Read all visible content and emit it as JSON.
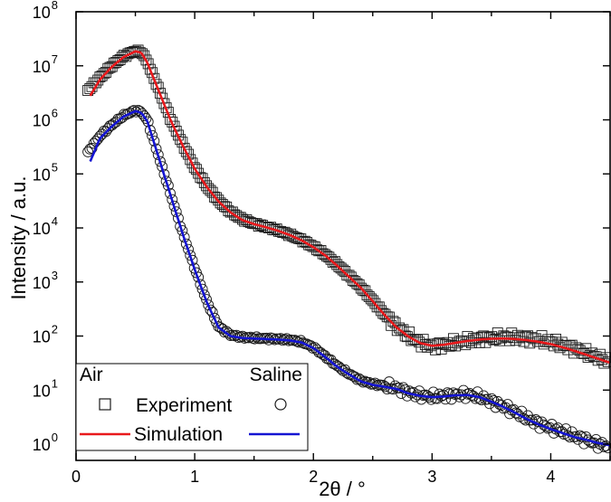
{
  "chart_data": {
    "type": "scatter",
    "xlabel": "2θ / °",
    "ylabel": "Intensity / a.u.",
    "xlim": [
      0,
      4.5
    ],
    "ylim": [
      0.5,
      100000000
    ],
    "yscale": "log",
    "x_ticks": [
      "0",
      "1",
      "2",
      "3",
      "4"
    ],
    "y_tick_bases": [
      "10",
      "10",
      "10",
      "10",
      "10",
      "10",
      "10",
      "10",
      "10"
    ],
    "y_tick_exponents": [
      "0",
      "1",
      "2",
      "3",
      "4",
      "5",
      "6",
      "7",
      "8"
    ],
    "grid": false,
    "legend": {
      "placement": "bottom-left",
      "header_left": "Air",
      "header_right": "Saline",
      "experiment_label": "Experiment",
      "simulation_label": "Simulation"
    },
    "colors": {
      "air_simulation": "#e8191c",
      "saline_simulation": "#1414d2",
      "experiment_markers": "#1a1a1a"
    },
    "series": [
      {
        "name": "Air",
        "kind": "experiment",
        "marker": "square",
        "x": [
          0.1,
          0.2,
          0.3,
          0.4,
          0.5,
          0.55,
          0.6,
          0.7,
          0.8,
          0.9,
          1.0,
          1.1,
          1.2,
          1.3,
          1.4,
          1.5,
          1.6,
          1.7,
          1.8,
          1.9,
          2.0,
          2.1,
          2.2,
          2.3,
          2.4,
          2.5,
          2.6,
          2.7,
          2.8,
          2.9,
          3.0,
          3.1,
          3.2,
          3.3,
          3.4,
          3.5,
          3.6,
          3.7,
          3.8,
          3.9,
          4.0,
          4.1,
          4.2,
          4.3,
          4.4,
          4.5
        ],
        "y": [
          3500000,
          6000000,
          10000000,
          15000000,
          19000000,
          18000000,
          12000000,
          3500000,
          1000000,
          350000,
          130000,
          60000,
          32000,
          20000,
          14500,
          12000,
          10500,
          9000,
          7500,
          6000,
          4500,
          3200,
          2100,
          1300,
          800,
          450,
          250,
          150,
          100,
          75,
          65,
          68,
          75,
          82,
          88,
          92,
          95,
          95,
          90,
          85,
          78,
          68,
          58,
          48,
          40,
          33
        ]
      },
      {
        "name": "Air",
        "kind": "simulation",
        "x": [
          0.12,
          0.2,
          0.3,
          0.4,
          0.5,
          0.55,
          0.6,
          0.7,
          0.8,
          0.9,
          1.0,
          1.1,
          1.2,
          1.3,
          1.4,
          1.5,
          1.6,
          1.7,
          1.8,
          1.9,
          2.0,
          2.1,
          2.2,
          2.3,
          2.4,
          2.5,
          2.6,
          2.7,
          2.8,
          2.9,
          3.0,
          3.1,
          3.2,
          3.3,
          3.4,
          3.5,
          3.6,
          3.7,
          3.8,
          3.9,
          4.0,
          4.1,
          4.2,
          4.3,
          4.4,
          4.5
        ],
        "y": [
          2800000,
          5500000,
          9500000,
          14500000,
          18500000,
          17500000,
          11500000,
          3300000,
          950000,
          330000,
          125000,
          58000,
          31000,
          19500,
          14000,
          11800,
          10300,
          8900,
          7400,
          5900,
          4400,
          3100,
          2000,
          1250,
          780,
          440,
          245,
          145,
          98,
          74,
          66,
          69,
          75,
          81,
          86,
          89,
          90,
          88,
          84,
          78,
          71,
          62,
          53,
          45,
          38,
          32
        ]
      },
      {
        "name": "Saline",
        "kind": "experiment",
        "marker": "circle",
        "x": [
          0.1,
          0.2,
          0.3,
          0.4,
          0.5,
          0.55,
          0.6,
          0.7,
          0.8,
          0.9,
          1.0,
          1.1,
          1.2,
          1.3,
          1.4,
          1.5,
          1.6,
          1.7,
          1.8,
          1.9,
          2.0,
          2.1,
          2.2,
          2.3,
          2.4,
          2.5,
          2.6,
          2.7,
          2.8,
          2.9,
          3.0,
          3.1,
          3.2,
          3.3,
          3.4,
          3.5,
          3.6,
          3.7,
          3.8,
          3.9,
          4.0,
          4.1,
          4.2,
          4.3,
          4.4,
          4.5
        ],
        "y": [
          250000,
          500000,
          800000,
          1200000,
          1500000,
          1400000,
          1000000,
          200000,
          40000,
          8000,
          1800,
          450,
          150,
          105,
          95,
          92,
          90,
          88,
          85,
          78,
          62,
          42,
          28,
          20,
          15,
          13,
          12,
          11,
          9,
          8,
          7.5,
          7.8,
          8.2,
          8.3,
          7.5,
          6.2,
          5,
          3.9,
          3,
          2.4,
          2,
          1.7,
          1.4,
          1.2,
          1,
          0.9
        ]
      },
      {
        "name": "Saline",
        "kind": "simulation",
        "x": [
          0.12,
          0.2,
          0.3,
          0.4,
          0.5,
          0.55,
          0.6,
          0.7,
          0.8,
          0.9,
          1.0,
          1.1,
          1.2,
          1.3,
          1.4,
          1.5,
          1.6,
          1.7,
          1.8,
          1.9,
          2.0,
          2.1,
          2.2,
          2.3,
          2.4,
          2.5,
          2.6,
          2.7,
          2.8,
          2.9,
          3.0,
          3.1,
          3.2,
          3.3,
          3.4,
          3.5,
          3.6,
          3.7,
          3.8,
          3.9,
          4.0,
          4.1,
          4.2,
          4.3,
          4.4,
          4.5
        ],
        "y": [
          170000,
          450000,
          750000,
          1150000,
          1450000,
          1350000,
          950000,
          190000,
          38000,
          7600,
          1700,
          430,
          145,
          100,
          92,
          90,
          88,
          86,
          83,
          76,
          60,
          41,
          27,
          19.5,
          14.5,
          12.5,
          11.5,
          10.5,
          8.7,
          7.8,
          7.4,
          7.6,
          8,
          8.1,
          7.4,
          6.1,
          4.9,
          3.8,
          2.9,
          2.3,
          1.9,
          1.6,
          1.35,
          1.2,
          1.05,
          0.95
        ]
      }
    ]
  }
}
